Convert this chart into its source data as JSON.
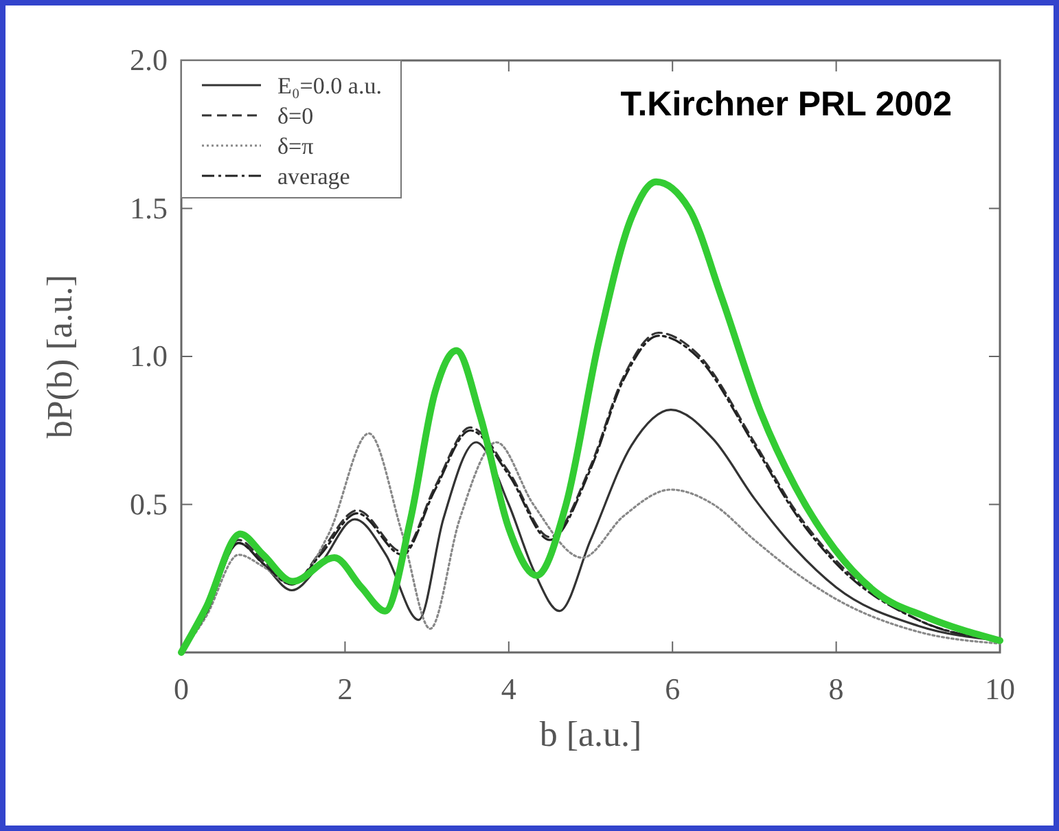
{
  "chart_data": {
    "type": "line",
    "xlabel": "b [a.u.]",
    "ylabel": "bP(b) [a.u.]",
    "annotations": [
      "T.Kirchner PRL 2002"
    ],
    "xlim": [
      0,
      10
    ],
    "xticks": [
      0,
      2,
      4,
      6,
      8,
      10
    ],
    "ylim": [
      0,
      2
    ],
    "yticks": [
      {
        "value": 0.5,
        "label": "0.5"
      },
      {
        "value": 1,
        "label": "1.0"
      },
      {
        "value": 1.5,
        "label": "1.5"
      },
      {
        "value": 2,
        "label": "2.0"
      }
    ],
    "grid": false,
    "legend": "top left",
    "series": [
      {
        "name": "E₀=0.0 a.u.",
        "color": "#333333",
        "line_style": "solid",
        "x": [
          0,
          0.3,
          0.7,
          1.0,
          1.35,
          1.7,
          2.12,
          2.5,
          2.9,
          3.2,
          3.6,
          4.0,
          4.3,
          4.62,
          5.0,
          5.5,
          5.98,
          6.5,
          7.0,
          7.5,
          8.0,
          9.0,
          10
        ],
        "values": [
          0,
          0.13,
          0.37,
          0.3,
          0.21,
          0.3,
          0.45,
          0.33,
          0.11,
          0.45,
          0.71,
          0.5,
          0.28,
          0.14,
          0.38,
          0.7,
          0.82,
          0.72,
          0.52,
          0.35,
          0.22,
          0.09,
          0.04
        ]
      },
      {
        "name": "δ=0",
        "color": "#333333",
        "line_style": "dashed",
        "x": [
          0,
          0.3,
          0.7,
          1.0,
          1.35,
          1.7,
          2.15,
          2.7,
          3.1,
          3.53,
          4.0,
          4.5,
          5.0,
          5.4,
          5.83,
          6.3,
          7.0,
          7.5,
          8.0,
          9.0,
          10
        ],
        "values": [
          0,
          0.13,
          0.38,
          0.31,
          0.23,
          0.34,
          0.48,
          0.34,
          0.56,
          0.76,
          0.61,
          0.39,
          0.63,
          0.93,
          1.08,
          1.01,
          0.71,
          0.48,
          0.31,
          0.11,
          0.04
        ]
      },
      {
        "name": "δ=π",
        "color": "#888888",
        "line_style": "dotted",
        "x": [
          0,
          0.3,
          0.7,
          1.0,
          1.35,
          1.8,
          2.29,
          2.7,
          3.04,
          3.4,
          3.85,
          4.3,
          4.9,
          5.4,
          5.98,
          6.5,
          7.0,
          7.5,
          8.0,
          9.0,
          10
        ],
        "values": [
          0,
          0.12,
          0.33,
          0.29,
          0.23,
          0.4,
          0.74,
          0.4,
          0.08,
          0.45,
          0.71,
          0.5,
          0.32,
          0.46,
          0.55,
          0.5,
          0.38,
          0.27,
          0.18,
          0.07,
          0.03
        ]
      },
      {
        "name": "average",
        "color": "#222222",
        "line_style": "dashdot",
        "x": [
          0,
          0.3,
          0.7,
          1.0,
          1.35,
          1.7,
          2.15,
          2.7,
          3.1,
          3.53,
          4.0,
          4.5,
          5.0,
          5.4,
          5.83,
          6.3,
          7.0,
          7.5,
          8.0,
          9.0,
          10
        ],
        "values": [
          0,
          0.13,
          0.37,
          0.3,
          0.23,
          0.33,
          0.47,
          0.33,
          0.55,
          0.75,
          0.6,
          0.38,
          0.62,
          0.92,
          1.07,
          1.0,
          0.7,
          0.47,
          0.3,
          0.11,
          0.04
        ]
      },
      {
        "color": "#33cc33",
        "line_style": "solid",
        "x": [
          0,
          0.3,
          0.72,
          1.0,
          1.36,
          1.87,
          2.2,
          2.49,
          2.8,
          3.1,
          3.36,
          3.65,
          4.0,
          4.34,
          4.7,
          5.1,
          5.5,
          5.8,
          6.2,
          6.6,
          7.08,
          7.5,
          7.98,
          8.5,
          9.1,
          10
        ],
        "values": [
          0,
          0.15,
          0.4,
          0.33,
          0.24,
          0.32,
          0.22,
          0.14,
          0.45,
          0.88,
          1.02,
          0.8,
          0.42,
          0.26,
          0.5,
          1.05,
          1.47,
          1.59,
          1.5,
          1.2,
          0.81,
          0.56,
          0.35,
          0.2,
          0.12,
          0.04
        ]
      }
    ]
  }
}
